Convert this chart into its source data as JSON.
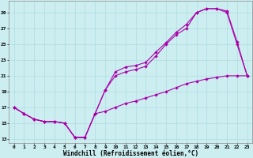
{
  "xlabel": "Windchill (Refroidissement éolien,°C)",
  "background_color": "#cceef0",
  "grid_color": "#a8d8dc",
  "line_color": "#aa00aa",
  "xlim": [
    -0.5,
    23.5
  ],
  "ylim": [
    12.5,
    30.5
  ],
  "yticks": [
    13,
    15,
    17,
    19,
    21,
    23,
    25,
    27,
    29
  ],
  "xticks": [
    0,
    1,
    2,
    3,
    4,
    5,
    6,
    7,
    8,
    9,
    10,
    11,
    12,
    13,
    14,
    15,
    16,
    17,
    18,
    19,
    20,
    21,
    22,
    23
  ],
  "line1_x": [
    0,
    1,
    2,
    3,
    4,
    5,
    6,
    7,
    8,
    9,
    10,
    11,
    12,
    13,
    14,
    15,
    16,
    17,
    18,
    19,
    20,
    21,
    22,
    23
  ],
  "line1_y": [
    17.0,
    16.2,
    15.5,
    15.2,
    15.2,
    15.0,
    13.2,
    13.2,
    16.2,
    19.2,
    21.5,
    22.1,
    22.3,
    22.7,
    24.0,
    25.2,
    26.5,
    27.5,
    29.0,
    29.5,
    29.5,
    29.2,
    25.3,
    21.0
  ],
  "line2_x": [
    0,
    1,
    2,
    3,
    4,
    5,
    6,
    7,
    8,
    9,
    10,
    11,
    12,
    13,
    14,
    15,
    16,
    17,
    18,
    19,
    20,
    21,
    22,
    23
  ],
  "line2_y": [
    17.0,
    16.2,
    15.5,
    15.2,
    15.2,
    15.0,
    13.2,
    13.2,
    16.2,
    19.2,
    21.0,
    21.5,
    21.8,
    22.2,
    23.5,
    25.0,
    26.2,
    27.0,
    29.0,
    29.5,
    29.5,
    29.0,
    25.0,
    21.0
  ],
  "line3_x": [
    0,
    1,
    2,
    3,
    4,
    5,
    6,
    7,
    8,
    9,
    10,
    11,
    12,
    13,
    14,
    15,
    16,
    17,
    18,
    19,
    20,
    21,
    22,
    23
  ],
  "line3_y": [
    17.0,
    16.2,
    15.5,
    15.2,
    15.2,
    15.0,
    13.2,
    13.2,
    16.2,
    16.5,
    17.0,
    17.5,
    17.8,
    18.2,
    18.6,
    19.0,
    19.5,
    20.0,
    20.3,
    20.6,
    20.8,
    21.0,
    21.0,
    21.0
  ],
  "marker_size": 2.0,
  "line_width": 0.8,
  "tick_fontsize": 4.5,
  "xlabel_fontsize": 5.5,
  "fig_width": 3.2,
  "fig_height": 2.0,
  "dpi": 100
}
